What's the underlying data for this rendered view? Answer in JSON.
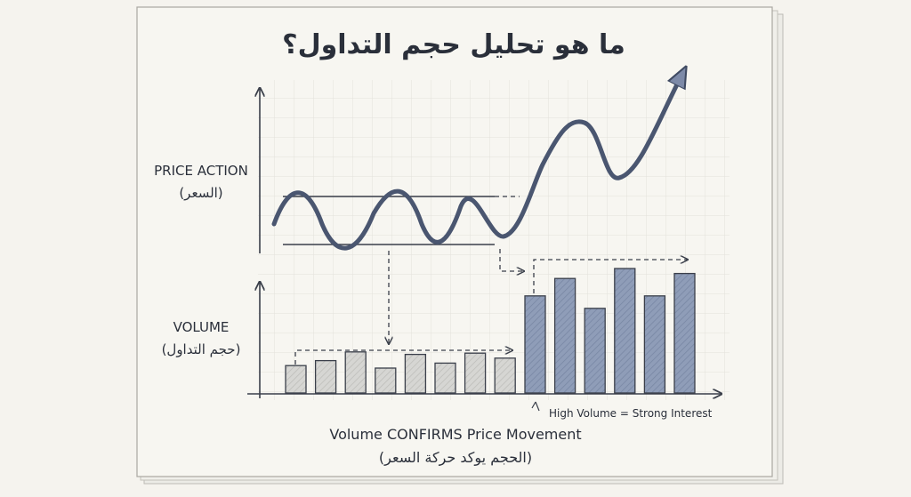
{
  "title": "ما هو تحليل حجم التداول؟",
  "price_panel": {
    "label_en": "PRICE ACTION",
    "label_ar": "(السعر)"
  },
  "volume_panel": {
    "label_en": "VOLUME",
    "label_ar": "(حجم التداول)",
    "annotation": "High Volume = Strong Interest"
  },
  "caption": {
    "line1": "Volume CONFIRMS Price Movement",
    "line2": "(الحجم يوكد حركة السعر)"
  },
  "chart_data": {
    "type": "bar",
    "low_volume_bars": [
      0.22,
      0.26,
      0.33,
      0.2,
      0.31,
      0.24,
      0.32,
      0.28
    ],
    "high_volume_bars": [
      0.78,
      0.92,
      0.68,
      1.0,
      0.78,
      0.96
    ],
    "colors": {
      "low_volume": "#d9d9d6",
      "high_volume": "#8f9db8",
      "price_line": "#4a5670"
    }
  }
}
